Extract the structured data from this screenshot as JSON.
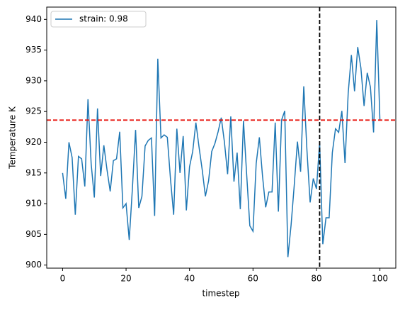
{
  "chart_data": {
    "type": "line",
    "xlabel": "timestep",
    "ylabel": "Temperature K",
    "x": [
      0,
      1,
      2,
      3,
      4,
      5,
      6,
      7,
      8,
      9,
      10,
      11,
      12,
      13,
      14,
      15,
      16,
      17,
      18,
      19,
      20,
      21,
      22,
      23,
      24,
      25,
      26,
      27,
      28,
      29,
      30,
      31,
      32,
      33,
      34,
      35,
      36,
      37,
      38,
      39,
      40,
      41,
      42,
      43,
      44,
      45,
      46,
      47,
      48,
      49,
      50,
      51,
      52,
      53,
      54,
      55,
      56,
      57,
      58,
      59,
      60,
      61,
      62,
      63,
      64,
      65,
      66,
      67,
      68,
      69,
      70,
      71,
      72,
      73,
      74,
      75,
      76,
      77,
      78,
      79,
      80,
      81,
      82,
      83,
      84,
      85,
      86,
      87,
      88,
      89,
      90,
      91,
      92,
      93,
      94,
      95,
      96,
      97,
      98,
      99,
      100
    ],
    "series": [
      {
        "name": "strain: 0.98",
        "color": "#1f77b4",
        "values": [
          915,
          910.8,
          920,
          917.5,
          908.2,
          917.7,
          917.3,
          912.8,
          927,
          916.5,
          911,
          925.5,
          914.5,
          919.5,
          915.5,
          912,
          917,
          917.3,
          921.7,
          909.3,
          910,
          904.1,
          912.5,
          922,
          909.3,
          911.2,
          919.4,
          920.3,
          920.7,
          908,
          933.6,
          920.7,
          921.2,
          920.8,
          914,
          908.2,
          922.2,
          915,
          921,
          908.9,
          916,
          918.5,
          923.2,
          919.2,
          915.5,
          911.2,
          913.7,
          918.5,
          919.8,
          921.7,
          924,
          920,
          914.8,
          924.2,
          913.6,
          918.3,
          909.1,
          923.5,
          914.8,
          906.4,
          905.5,
          916.5,
          920.8,
          914.5,
          909.4,
          911.9,
          911.9,
          923.2,
          908.7,
          923.6,
          925.1,
          901.3,
          906.5,
          913,
          920.1,
          915.2,
          929.1,
          918.7,
          910.2,
          914.1,
          912.4,
          920,
          903.4,
          907.7,
          907.7,
          918.3,
          922.2,
          921.6,
          925.1,
          916.6,
          928,
          934.2,
          928.3,
          935.5,
          932.1,
          925.9,
          931.3,
          929,
          921.6,
          939.9,
          923.5
        ]
      }
    ],
    "xlim": [
      -5,
      105
    ],
    "xticks": [
      0,
      20,
      40,
      60,
      80,
      100
    ],
    "ylim": [
      899.5,
      942
    ],
    "yticks": [
      900,
      905,
      910,
      915,
      920,
      925,
      930,
      935,
      940
    ],
    "hline": {
      "y": 923.6,
      "color": "#e8140c"
    },
    "vline": {
      "x": 81,
      "color": "#000000"
    },
    "legend": "upper left"
  }
}
